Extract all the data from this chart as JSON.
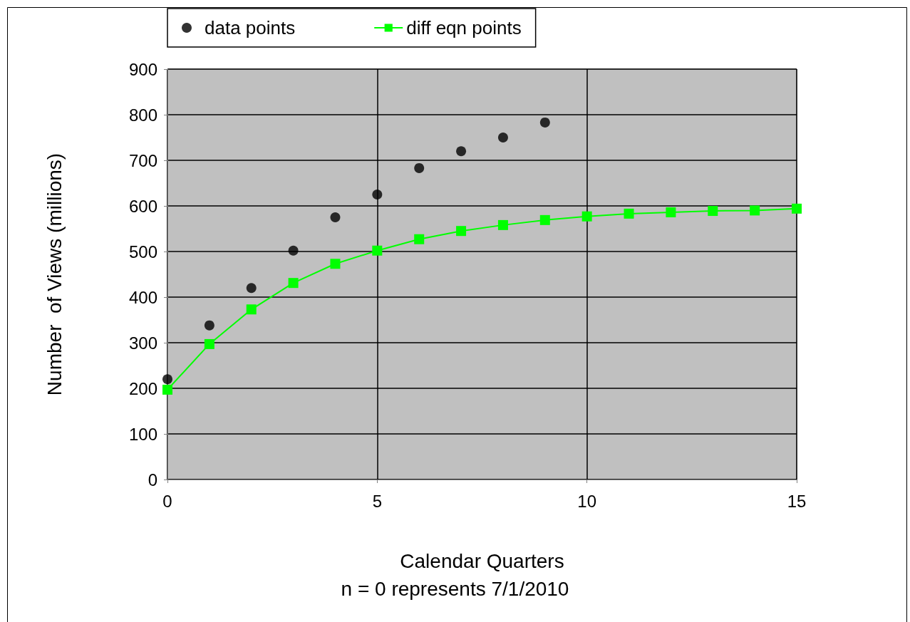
{
  "chart_data": {
    "type": "scatter",
    "xlabel": "Calendar Quarters",
    "annotations": [
      "n = 0 represents 7/1/2010"
    ],
    "ylabel": "Number  of Views (millions)",
    "xlim": [
      0,
      15
    ],
    "xticks": [
      0,
      5,
      10,
      15
    ],
    "ylim": [
      0,
      900
    ],
    "yticks": [
      0,
      100,
      200,
      300,
      400,
      500,
      600,
      700,
      800,
      900
    ],
    "grid": true,
    "legend": "top",
    "series": [
      {
        "name": "data points",
        "marker": "circle",
        "color": "#000000",
        "x": [
          0,
          1,
          2,
          3,
          4,
          5,
          6,
          7,
          8,
          9
        ],
        "values": [
          220,
          338,
          420,
          502,
          575,
          625,
          683,
          720,
          750,
          783
        ]
      },
      {
        "name": "diff eqn points",
        "type": "line",
        "marker": "square",
        "color": "#00ff00",
        "x": [
          0,
          1,
          2,
          3,
          4,
          5,
          6,
          7,
          8,
          9,
          10,
          11,
          12,
          13,
          14,
          15
        ],
        "values": [
          197,
          297,
          373,
          431,
          473,
          502,
          527,
          545,
          558,
          569,
          577,
          583,
          586,
          589,
          590,
          594
        ]
      }
    ]
  }
}
